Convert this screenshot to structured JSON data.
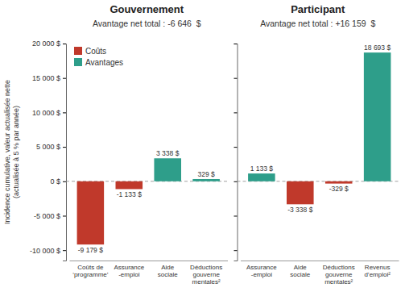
{
  "chart_data": [
    {
      "type": "bar",
      "title": "Gouvernement",
      "subtitle": "Avantage net total : -6 646  $",
      "ylabel": "Incidence cumulative, valeur actualisée nette\n(actualisée à 5 % par année)",
      "categories": [
        "Coûts de\n‘programme’",
        "Assurance\n-emploi",
        "Aide\nsociale",
        "Déductions\ngouverne\nmentales²"
      ],
      "series": [
        {
          "name": "Coûts",
          "color": "#c0392b",
          "values": [
            -9179,
            -1133,
            null,
            null
          ],
          "value_labels": [
            "-9 179 $",
            "-1 133 $",
            null,
            null
          ]
        },
        {
          "name": "Avantages",
          "color": "#2e9e8a",
          "values": [
            null,
            null,
            3338,
            329
          ],
          "value_labels": [
            null,
            null,
            "3 338 $",
            "329 $"
          ]
        }
      ],
      "stacked": true,
      "data_labels": true,
      "legend": "upper left",
      "ylim": [
        -11500,
        20000
      ],
      "yticks": [
        {
          "value": -10000,
          "label": "-10 000 $"
        },
        {
          "value": -5000,
          "label": "-5 000 $"
        },
        {
          "value": 0,
          "label": "0 $"
        },
        {
          "value": 5000,
          "label": "5 000 $"
        },
        {
          "value": 10000,
          "label": "10 000 $"
        },
        {
          "value": 15000,
          "label": "15 000 $"
        },
        {
          "value": 20000,
          "label": "20 000 $"
        }
      ]
    },
    {
      "type": "bar",
      "title": "Participant",
      "subtitle": "Avantage net total : +16 159  $",
      "categories": [
        "Assurance\n-emploi",
        "Aide\nsociale",
        "Déductions\ngouverne\nmentales²",
        "Revenus\nd’emploi²"
      ],
      "series": [
        {
          "name": "Coûts",
          "color": "#c0392b",
          "values": [
            null,
            -3338,
            -329,
            null
          ],
          "value_labels": [
            null,
            "-3 338 $",
            "-329 $",
            null
          ]
        },
        {
          "name": "Avantages",
          "color": "#2e9e8a",
          "values": [
            1133,
            null,
            null,
            18693
          ],
          "value_labels": [
            "1 133 $",
            null,
            null,
            "18 693 $"
          ]
        }
      ],
      "stacked": true,
      "data_labels": true,
      "tick_labels": "x",
      "ylim": [
        -11500,
        20000
      ],
      "yticks": [
        -10000,
        -5000,
        0,
        5000,
        10000,
        15000,
        20000
      ]
    }
  ]
}
